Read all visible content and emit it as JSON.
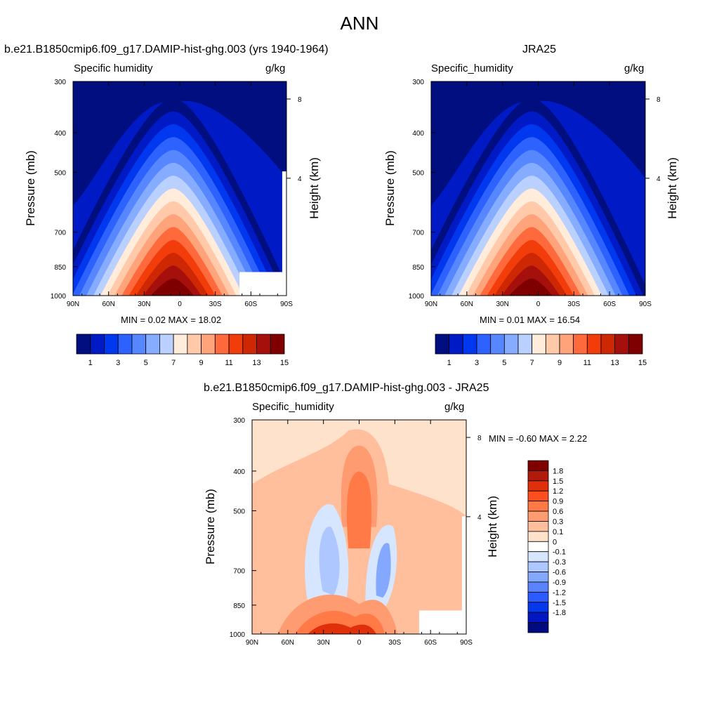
{
  "main_title": "ANN",
  "panels": [
    {
      "title": "b.e21.B1850cmip6.f09_g17.DAMIP-hist-ghg.003 (yrs 1940-1964)",
      "left_label": "Specific humidity",
      "right_label": "g/kg",
      "y_title": "Pressure (mb)",
      "y2_title": "Height (km)",
      "minmax": "MIN =   0.02  MAX =  18.02"
    },
    {
      "title": "JRA25",
      "left_label": "Specific_humidity",
      "right_label": "g/kg",
      "y_title": "Pressure (mb)",
      "y2_title": "Height (km)",
      "minmax": "MIN =   0.01  MAX =  16.54"
    },
    {
      "title": "b.e21.B1850cmip6.f09_g17.DAMIP-hist-ghg.003 - JRA25",
      "left_label": "Specific_humidity",
      "right_label": "g/kg",
      "y_title": "Pressure (mb)",
      "y2_title": "Height (km)",
      "minmax": "MIN =  -0.60  MAX =   2.22"
    }
  ],
  "chart_data": [
    {
      "type": "heatmap",
      "title": "b.e21.B1850cmip6.f09_g17.DAMIP-hist-ghg.003 (yrs 1940-1964)",
      "variable": "Specific humidity",
      "units": "g/kg",
      "x_ticks": [
        "90N",
        "60N",
        "30N",
        "0",
        "30S",
        "60S",
        "90S"
      ],
      "x_range": [
        90,
        -90
      ],
      "y_ticks": [
        "300",
        "400",
        "500",
        "700",
        "850",
        "1000"
      ],
      "y_range": [
        1000,
        300
      ],
      "y_scale": "log",
      "y2_ticks": [
        "8",
        "4"
      ],
      "y2_label": "Height (km)",
      "contour_levels": [
        1,
        2,
        3,
        4,
        5,
        6,
        7,
        8,
        9,
        10,
        11,
        12,
        13,
        14,
        15
      ],
      "colorbar_labels": [
        "1",
        "3",
        "5",
        "7",
        "9",
        "11",
        "13",
        "15"
      ],
      "min": 0.02,
      "max": 18.02,
      "colorbar_colors": [
        "#000e7f",
        "#001bc6",
        "#0038ef",
        "#2d62ff",
        "#5687ff",
        "#86acff",
        "#bad0ff",
        "#ffecdb",
        "#ffc9aa",
        "#ffa37a",
        "#ff6a3d",
        "#f23d0b",
        "#cd2803",
        "#a5100d",
        "#7e0000"
      ]
    },
    {
      "type": "heatmap",
      "title": "JRA25",
      "variable": "Specific_humidity",
      "units": "g/kg",
      "x_ticks": [
        "90N",
        "60N",
        "30N",
        "0",
        "30S",
        "60S",
        "90S"
      ],
      "x_range": [
        90,
        -90
      ],
      "y_ticks": [
        "300",
        "400",
        "500",
        "700",
        "850",
        "1000"
      ],
      "y_range": [
        1000,
        300
      ],
      "y_scale": "log",
      "y2_ticks": [
        "8",
        "4"
      ],
      "y2_label": "Height (km)",
      "contour_levels": [
        1,
        2,
        3,
        4,
        5,
        6,
        7,
        8,
        9,
        10,
        11,
        12,
        13,
        14,
        15
      ],
      "colorbar_labels": [
        "1",
        "3",
        "5",
        "7",
        "9",
        "11",
        "13",
        "15"
      ],
      "min": 0.01,
      "max": 16.54,
      "colorbar_colors": [
        "#000e7f",
        "#001bc6",
        "#0038ef",
        "#2d62ff",
        "#5687ff",
        "#86acff",
        "#bad0ff",
        "#ffecdb",
        "#ffc9aa",
        "#ffa37a",
        "#ff6a3d",
        "#f23d0b",
        "#cd2803",
        "#a5100d",
        "#7e0000"
      ]
    },
    {
      "type": "heatmap",
      "title": "b.e21.B1850cmip6.f09_g17.DAMIP-hist-ghg.003 - JRA25",
      "variable": "Specific_humidity",
      "units": "g/kg",
      "x_ticks": [
        "90N",
        "60N",
        "30N",
        "0",
        "30S",
        "60S",
        "90S"
      ],
      "x_range": [
        90,
        -90
      ],
      "y_ticks": [
        "300",
        "400",
        "500",
        "700",
        "850",
        "1000"
      ],
      "y_range": [
        1000,
        300
      ],
      "y_scale": "log",
      "y2_ticks": [
        "8",
        "4"
      ],
      "y2_label": "Height (km)",
      "contour_levels": [
        -1.8,
        -1.5,
        -1.2,
        -0.9,
        -0.6,
        -0.3,
        -0.1,
        0,
        0.1,
        0.3,
        0.6,
        0.9,
        1.2,
        1.5,
        1.8
      ],
      "colorbar_labels": [
        "1.8",
        "1.5",
        "1.2",
        "0.9",
        "0.6",
        "0.3",
        "0.1",
        "0",
        "-0.1",
        "-0.3",
        "-0.6",
        "-0.9",
        "-1.2",
        "-1.5",
        "-1.8"
      ],
      "min": -0.6,
      "max": 2.22,
      "colorbar_colors": [
        "#7e0000",
        "#b21a0b",
        "#e0300a",
        "#ff4e1e",
        "#ff7a46",
        "#ff9b70",
        "#ffbe9c",
        "#ffe2cc",
        "#ffffff",
        "#d6e6ff",
        "#aec8ff",
        "#85a8ff",
        "#5a84ff",
        "#2c5cff",
        "#0638ec",
        "#0017c2",
        "#000b80"
      ]
    }
  ]
}
